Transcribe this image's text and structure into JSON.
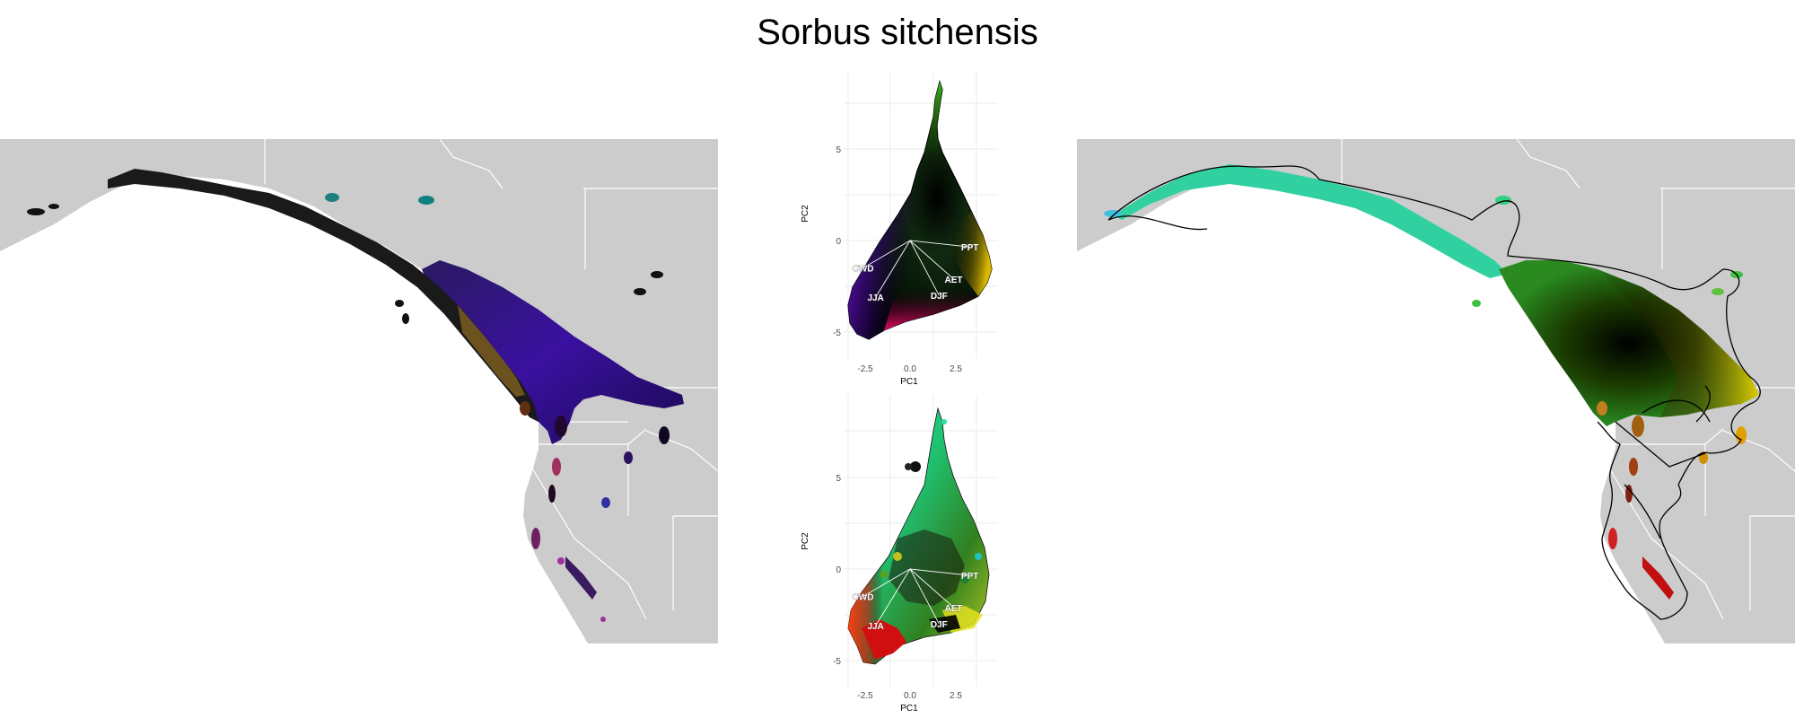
{
  "title": "Sorbus sitchensis",
  "colors": {
    "land": "#cccccc",
    "border": "#ffffff",
    "grid": "#ebebeb"
  },
  "chart_data": [
    {
      "type": "scatter",
      "panel": "top-pca",
      "xlabel": "PC1",
      "ylabel": "PC2",
      "x_ticks": [
        -2.5,
        0.0,
        2.5
      ],
      "x_tick_labels": [
        "-2.5",
        "0.0",
        "2.5"
      ],
      "y_ticks": [
        -5,
        0,
        5
      ],
      "y_tick_labels": [
        "-5",
        "0",
        "5"
      ],
      "xlim": [
        -4.5,
        4.8
      ],
      "ylim": [
        -6.8,
        8.8
      ],
      "loadings": [
        {
          "label": "CWD",
          "x": -2.6,
          "y": -1.5
        },
        {
          "label": "JJA",
          "x": -1.9,
          "y": -3.1
        },
        {
          "label": "PPT",
          "x": 3.3,
          "y": -0.35
        },
        {
          "label": "AET",
          "x": 2.4,
          "y": -2.1
        },
        {
          "label": "DJF",
          "x": 1.6,
          "y": -3.0
        }
      ]
    },
    {
      "type": "scatter",
      "panel": "bottom-pca",
      "xlabel": "PC1",
      "ylabel": "PC2",
      "x_ticks": [
        -2.5,
        0.0,
        2.5
      ],
      "x_tick_labels": [
        "-2.5",
        "0.0",
        "2.5"
      ],
      "y_ticks": [
        -5,
        0,
        5
      ],
      "y_tick_labels": [
        "-5",
        "0",
        "5"
      ],
      "xlim": [
        -4.5,
        4.8
      ],
      "ylim": [
        -6.8,
        8.8
      ],
      "loadings": [
        {
          "label": "CWD",
          "x": -2.6,
          "y": -1.5
        },
        {
          "label": "JJA",
          "x": -1.9,
          "y": -3.1
        },
        {
          "label": "PPT",
          "x": 3.3,
          "y": -0.35
        },
        {
          "label": "AET",
          "x": 2.4,
          "y": -2.1
        },
        {
          "label": "DJF",
          "x": 1.6,
          "y": -3.0
        }
      ]
    }
  ]
}
